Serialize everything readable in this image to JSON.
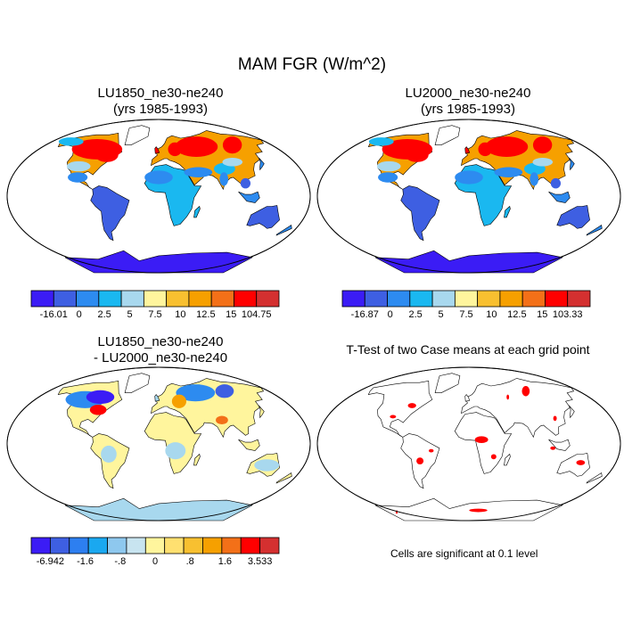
{
  "page": {
    "title": "MAM FGR (W/m^2)"
  },
  "panels": [
    {
      "id": "p1",
      "title1": "LU1850_ne30-ne240",
      "title2": "(yrs 1985-1993)"
    },
    {
      "id": "p2",
      "title1": "LU2000_ne30-ne240",
      "title2": "(yrs 1985-1993)"
    },
    {
      "id": "p3",
      "title1": "LU1850_ne30-ne240",
      "title2": "- LU2000_ne30-ne240"
    },
    {
      "id": "p4",
      "title1": "T-Test of two Case means at each grid point",
      "title2": ""
    }
  ],
  "colorbars": [
    {
      "id": "cb1",
      "labels": [
        "-16.01",
        "0",
        "2.5",
        "5",
        "7.5",
        "10",
        "12.5",
        "15",
        "104.75"
      ],
      "colors": [
        "#3b1cf5",
        "#3e5fe2",
        "#2d8bf0",
        "#1ab8f0",
        "#a8d8ee",
        "#fff59d",
        "#f8c030",
        "#f6a000",
        "#f37018",
        "#ff0000",
        "#d43030"
      ]
    },
    {
      "id": "cb2",
      "labels": [
        "-16.87",
        "0",
        "2.5",
        "5",
        "7.5",
        "10",
        "12.5",
        "15",
        "103.33"
      ],
      "colors": [
        "#3b1cf5",
        "#3e5fe2",
        "#2d8bf0",
        "#1ab8f0",
        "#a8d8ee",
        "#fff59d",
        "#f8c030",
        "#f6a000",
        "#f37018",
        "#ff0000",
        "#d43030"
      ]
    },
    {
      "id": "cb3",
      "labels": [
        "-6.942",
        "-1.6",
        "-.8",
        "0",
        ".8",
        "1.6",
        "3.533"
      ],
      "colors": [
        "#3b1cf5",
        "#3e5fe2",
        "#2d7ff0",
        "#1aa8f0",
        "#8ec8ee",
        "#c8e4f0",
        "#fff59d",
        "#ffe070",
        "#f8c030",
        "#f6a000",
        "#f37018",
        "#ff0000",
        "#d43030"
      ]
    }
  ],
  "note": "Cells are significant at 0.1 level",
  "map_colors": {
    "antarctica_abs": "#3b1cf5",
    "south_america_abs": "#3e5fe2",
    "africa_abs": "#1ab8f0",
    "australia_abs": "#3e5fe2",
    "north_abs": "#ff0000",
    "north_warm": "#f6a000",
    "diff_base": "#fff59d",
    "diff_blue": "#2d8bf0",
    "diff_light": "#a8d8ee",
    "ttest_sig": "#ff0000"
  }
}
